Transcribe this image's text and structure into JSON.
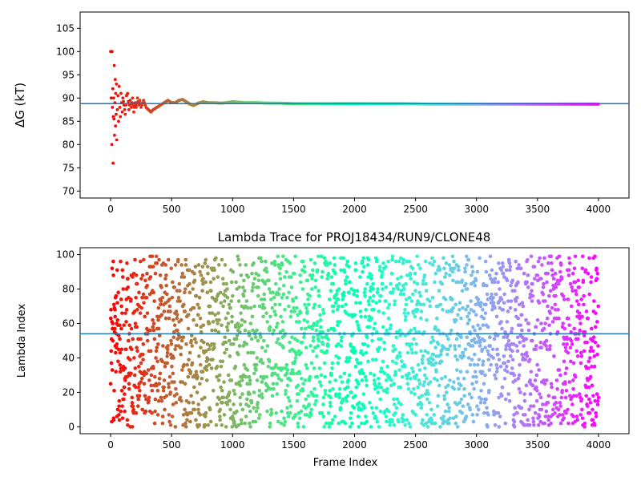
{
  "chart_data": [
    {
      "type": "scatter",
      "title": "",
      "xlabel": "",
      "ylabel": "ΔG (kT)",
      "xlim": [
        -250,
        4250
      ],
      "ylim": [
        68.5,
        108.5
      ],
      "xticks": [
        0,
        500,
        1000,
        1500,
        2000,
        2500,
        3000,
        3500,
        4000
      ],
      "yticks": [
        70,
        75,
        80,
        85,
        90,
        95,
        100,
        105
      ],
      "colormap": "rainbow (red to violet with increasing frame index)",
      "reference_line": {
        "y": 88.8,
        "color": "#1f77b4"
      },
      "series": [
        {
          "points": [
            [
              0,
              100.0
            ],
            [
              5,
              90.0
            ],
            [
              10,
              80.0
            ],
            [
              12,
              100.0
            ],
            [
              15,
              88.0
            ],
            [
              18,
              92.0
            ],
            [
              20,
              76.0
            ],
            [
              22,
              86.0
            ],
            [
              25,
              90.0
            ],
            [
              28,
              85.5
            ],
            [
              30,
              97.0
            ],
            [
              32,
              82.0
            ],
            [
              35,
              89.0
            ],
            [
              38,
              94.0
            ],
            [
              40,
              84.0
            ],
            [
              42,
              91.0
            ],
            [
              45,
              86.5
            ],
            [
              48,
              93.0
            ],
            [
              50,
              81.0
            ],
            [
              55,
              87.5
            ],
            [
              60,
              90.5
            ],
            [
              65,
              85.0
            ],
            [
              70,
              92.5
            ],
            [
              75,
              88.0
            ],
            [
              80,
              86.0
            ],
            [
              85,
              91.0
            ],
            [
              90,
              89.0
            ],
            [
              95,
              87.0
            ],
            [
              100,
              90.0
            ],
            [
              110,
              88.5
            ],
            [
              120,
              86.5
            ],
            [
              130,
              90.5
            ],
            [
              140,
              91.0
            ],
            [
              150,
              87.5
            ],
            [
              160,
              89.5
            ],
            [
              170,
              88.0
            ],
            [
              180,
              90.0
            ],
            [
              190,
              87.0
            ],
            [
              200,
              89.0
            ],
            [
              210,
              88.0
            ],
            [
              220,
              90.0
            ],
            [
              230,
              88.5
            ],
            [
              240,
              89.5
            ],
            [
              250,
              88.0
            ],
            [
              270,
              89.5
            ],
            [
              290,
              88.0
            ],
            [
              310,
              87.5
            ],
            [
              330,
              87.0
            ],
            [
              350,
              87.5
            ],
            [
              380,
              88.0
            ],
            [
              410,
              88.5
            ],
            [
              440,
              89.0
            ],
            [
              470,
              89.5
            ],
            [
              500,
              89.0
            ],
            [
              530,
              89.0
            ],
            [
              560,
              89.5
            ],
            [
              590,
              89.7
            ],
            [
              620,
              89.2
            ],
            [
              650,
              88.7
            ],
            [
              680,
              88.4
            ],
            [
              720,
              88.9
            ],
            [
              760,
              89.2
            ],
            [
              800,
              89.0
            ],
            [
              850,
              89.0
            ],
            [
              900,
              88.9
            ],
            [
              950,
              89.0
            ],
            [
              1000,
              89.2
            ],
            [
              1050,
              89.1
            ],
            [
              1100,
              89.0
            ],
            [
              1200,
              89.0
            ],
            [
              1300,
              88.9
            ],
            [
              1400,
              88.9
            ],
            [
              1500,
              88.8
            ],
            [
              1600,
              88.8
            ],
            [
              1700,
              88.8
            ],
            [
              1800,
              88.8
            ],
            [
              1900,
              88.8
            ],
            [
              2000,
              88.8
            ],
            [
              2200,
              88.8
            ],
            [
              2400,
              88.8
            ],
            [
              2600,
              88.7
            ],
            [
              2800,
              88.7
            ],
            [
              3000,
              88.7
            ],
            [
              3200,
              88.7
            ],
            [
              3400,
              88.7
            ],
            [
              3600,
              88.7
            ],
            [
              3800,
              88.7
            ],
            [
              4000,
              88.7
            ]
          ]
        }
      ]
    },
    {
      "type": "scatter",
      "title": "Lambda Trace for PROJ18434/RUN9/CLONE48",
      "xlabel": "Frame Index",
      "ylabel": "Lambda Index",
      "xlim": [
        -250,
        4250
      ],
      "ylim": [
        -4,
        104
      ],
      "xticks": [
        0,
        500,
        1000,
        1500,
        2000,
        2500,
        3000,
        3500,
        4000
      ],
      "yticks": [
        0,
        20,
        40,
        60,
        80,
        100
      ],
      "colormap": "rainbow (red to violet with increasing frame index)",
      "reference_line": {
        "y": 54,
        "color": "#1f77b4"
      },
      "series": [
        {
          "x_range": [
            0,
            4000
          ],
          "frames": 4001,
          "lambda_range": [
            0,
            99
          ],
          "distribution": "lambda index spread across 0-99 at every frame"
        }
      ]
    }
  ]
}
